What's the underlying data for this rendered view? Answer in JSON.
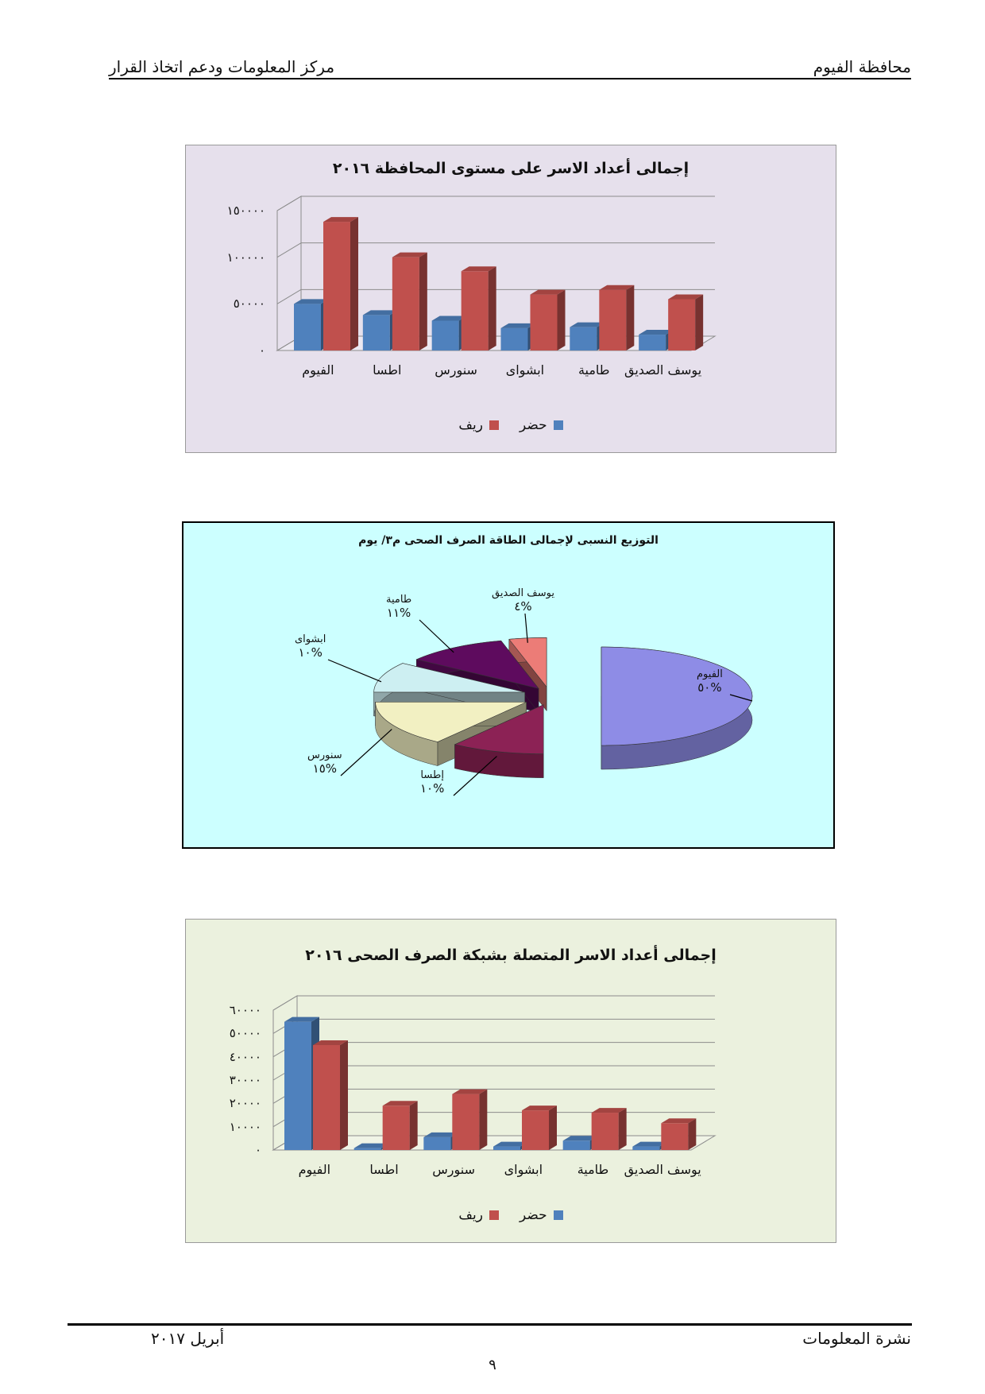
{
  "header": {
    "right": "محافظة الفيوم",
    "left": "مركز المعلومات ودعم اتخاذ القرار"
  },
  "footer": {
    "right": "نشرة المعلومات",
    "left": "أبريل ٢٠١٧",
    "page_number": "٩"
  },
  "chart_data": [
    {
      "type": "bar",
      "title": "إجمالى أعداد الاسر على مستوى المحافظة ٢٠١٦",
      "categories": [
        "الفيوم",
        "اطسا",
        "سنورس",
        "ابشواى",
        "طامية",
        "يوسف الصديق"
      ],
      "series": [
        {
          "name": "حضر",
          "values": [
            50000,
            38000,
            32000,
            24000,
            25000,
            17000
          ]
        },
        {
          "name": "ريف",
          "values": [
            138000,
            100000,
            85000,
            60000,
            65000,
            55000
          ]
        }
      ],
      "ylim": [
        0,
        150000
      ],
      "yticks": [
        "٠",
        "٥٠٠٠٠",
        "١٠٠٠٠٠",
        "١٥٠٠٠٠"
      ],
      "grid": true,
      "legend": "bottom",
      "colors": {
        "حضر": "#4F81BD",
        "ريف": "#C0504D",
        "background": "#E6E0EC"
      }
    },
    {
      "type": "pie",
      "title": "التوزيع النسبى لإجمالى الطاقة الصرف الصحى م٣/ يوم",
      "slices": [
        {
          "label": "الفيوم",
          "value": 50,
          "text": "%٥٠",
          "color": "#8E8CE6"
        },
        {
          "label": "إطسا",
          "value": 10,
          "text": "%١٠",
          "color": "#8C2255"
        },
        {
          "label": "سنورس",
          "value": 15,
          "text": "%١٥",
          "color": "#F2F0C2"
        },
        {
          "label": "ابشواى",
          "value": 10,
          "text": "%١٠",
          "color": "#CDEFF2"
        },
        {
          "label": "طامية",
          "value": 11,
          "text": "%١١",
          "color": "#5E0B5E"
        },
        {
          "label": "يوسف الصديق",
          "value": 4,
          "text": "%٤",
          "color": "#EC7C77"
        }
      ],
      "legend": "none",
      "colors": {
        "background": "#CCFFFF"
      }
    },
    {
      "type": "bar",
      "title": "إجمالى أعداد الاسر المتصلة بشبكة الصرف الصحى ٢٠١٦",
      "categories": [
        "الفيوم",
        "اطسا",
        "سنورس",
        "ابشواى",
        "طامية",
        "يوسف الصديق"
      ],
      "series": [
        {
          "name": "حضر",
          "values": [
            55000,
            800,
            5500,
            1500,
            4000,
            1500
          ]
        },
        {
          "name": "ريف",
          "values": [
            45000,
            19000,
            24000,
            17000,
            16000,
            11500
          ]
        }
      ],
      "ylim": [
        0,
        60000
      ],
      "yticks": [
        "٠",
        "١٠٠٠٠",
        "٢٠٠٠٠",
        "٣٠٠٠٠",
        "٤٠٠٠٠",
        "٥٠٠٠٠",
        "٦٠٠٠٠"
      ],
      "grid": true,
      "legend": "bottom",
      "colors": {
        "حضر": "#4F81BD",
        "ريف": "#C0504D",
        "background": "#EBF1DE"
      }
    }
  ]
}
